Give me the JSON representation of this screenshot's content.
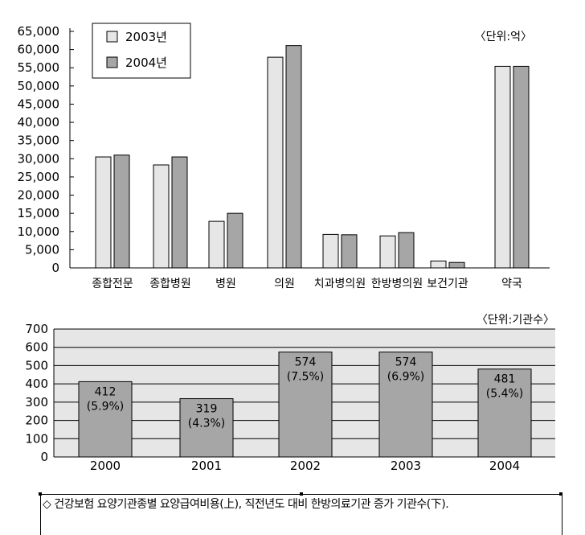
{
  "chart_data": [
    {
      "type": "bar",
      "unit_label": "〈단위:억〉",
      "categories": [
        "종합전문",
        "종합병원",
        "병원",
        "의원",
        "치과병의원",
        "한방병의원",
        "보건기관",
        "약국"
      ],
      "series": [
        {
          "name": "2003년",
          "color": "#e6e6e6",
          "values": [
            30500,
            28300,
            12800,
            57900,
            9200,
            8800,
            1900,
            55400
          ]
        },
        {
          "name": "2004년",
          "color": "#a6a6a6",
          "values": [
            31000,
            30500,
            15000,
            61100,
            9100,
            9700,
            1500,
            55400
          ]
        }
      ],
      "yticks": [
        "0",
        "5,000",
        "10,000",
        "15,000",
        "20,000",
        "25,000",
        "30,000",
        "35,000",
        "40,000",
        "45,000",
        "50,000",
        "55,000",
        "60,000",
        "65,000"
      ],
      "ylim": [
        0,
        65000
      ],
      "legend_position": "top-left",
      "grid": false
    },
    {
      "type": "bar",
      "unit_label": "〈단위:기관수〉",
      "categories": [
        "2000",
        "2001",
        "2002",
        "2003",
        "2004"
      ],
      "values": [
        412,
        319,
        574,
        574,
        481
      ],
      "value_labels": [
        "412",
        "319",
        "574",
        "574",
        "481"
      ],
      "pct_labels": [
        "(5.9%)",
        "(4.3%)",
        "(7.5%)",
        "(6.9%)",
        "(5.4%)"
      ],
      "bar_color": "#a6a6a6",
      "background_color": "#e6e6e6",
      "yticks": [
        "0",
        "100",
        "200",
        "300",
        "400",
        "500",
        "600",
        "700"
      ],
      "ylim": [
        0,
        700
      ],
      "grid": true
    }
  ],
  "caption": "◇ 건강보험 요양기관종별 요양급여비용(上), 직전년도 대비 한방의료기관 증가 기관수(下)."
}
